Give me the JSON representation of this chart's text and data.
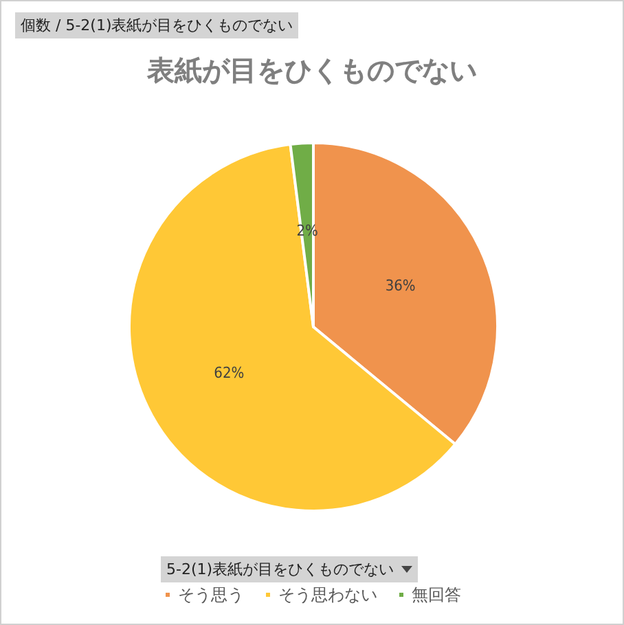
{
  "chart_data": {
    "type": "pie",
    "title": "表紙が目をひくものでない",
    "subtitle": "個数 / 5-2(1)表紙が目をひくものでない",
    "legend_title": "5-2(1)表紙が目をひくものでない",
    "categories": [
      "そう思う",
      "そう思わない",
      "無回答"
    ],
    "values": [
      36,
      62,
      2
    ],
    "colors": [
      "#f0934d",
      "#ffc836",
      "#70ad47"
    ],
    "value_labels": [
      "36%",
      "62%",
      "2%"
    ],
    "legend": "bottom"
  }
}
